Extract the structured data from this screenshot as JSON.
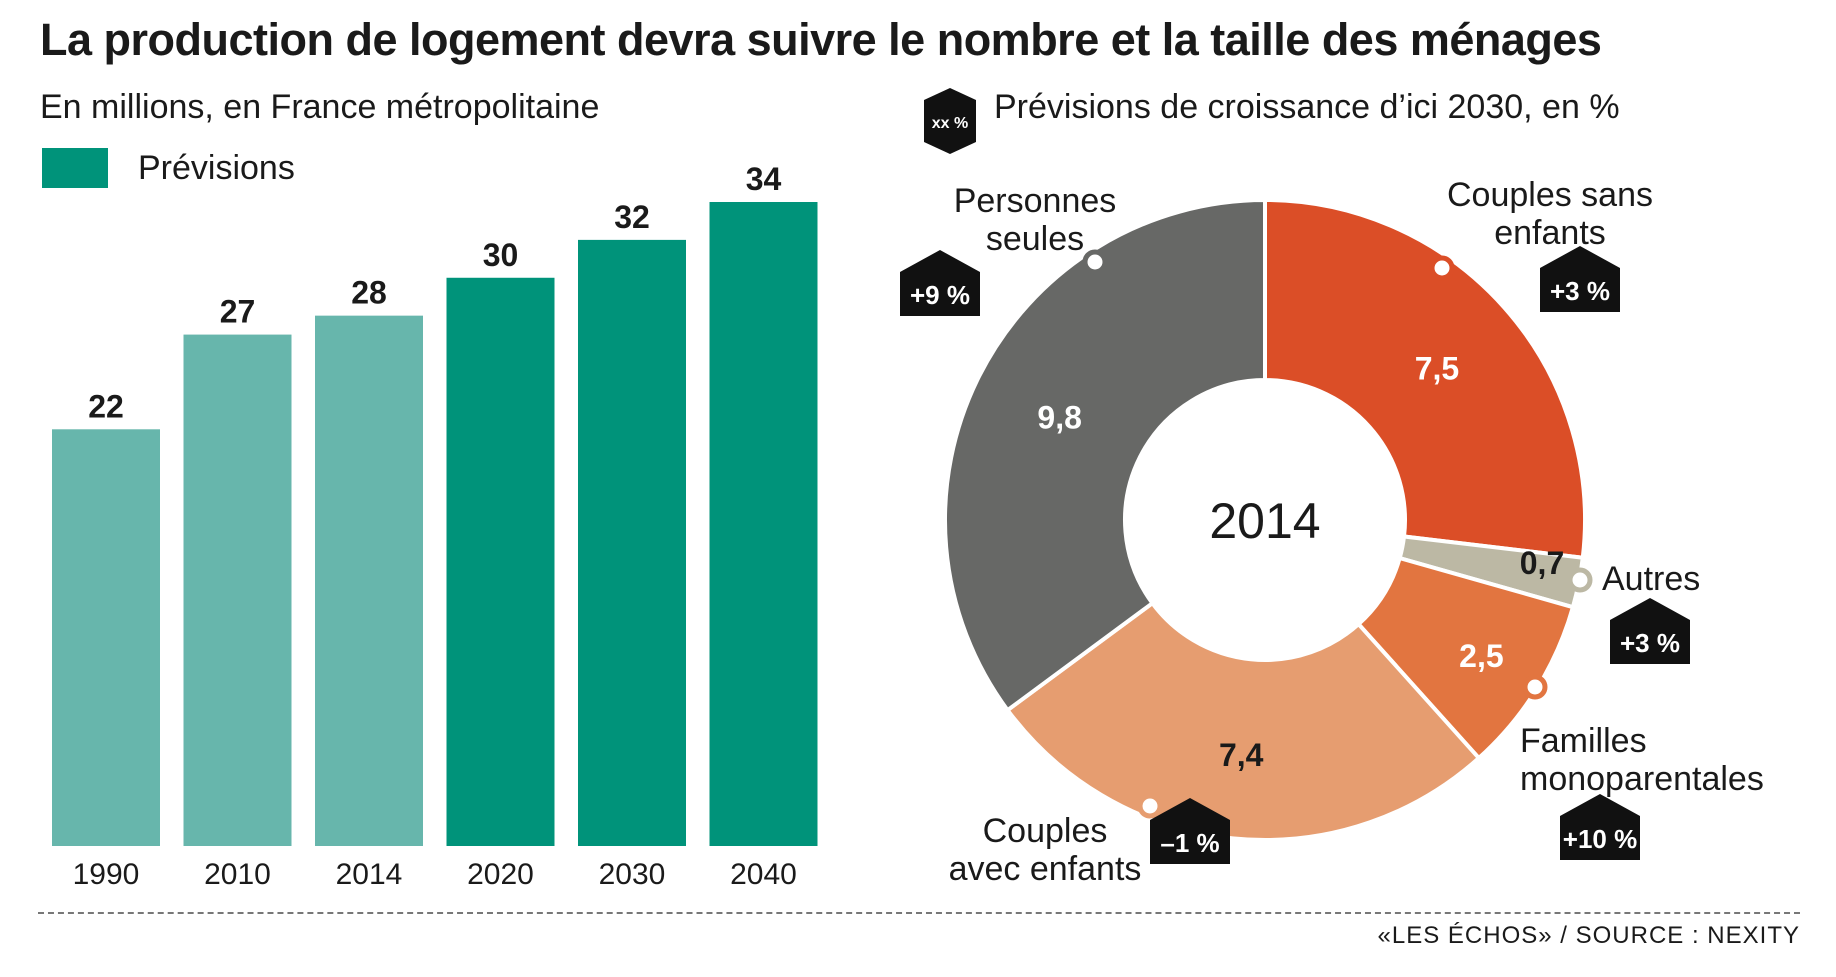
{
  "title": "La production de logement devra suivre le nombre et la taille des ménages",
  "source": "«LES ÉCHOS» / SOURCE : NEXITY",
  "chart_data": [
    {
      "type": "bar",
      "subtitle": "En millions, en France métropolitaine",
      "legend": {
        "label": "Prévisions",
        "color": "#00937a"
      },
      "categories": [
        "1990",
        "2010",
        "2014",
        "2020",
        "2030",
        "2040"
      ],
      "values": [
        22,
        27,
        28,
        30,
        32,
        34
      ],
      "forecast": [
        false,
        false,
        false,
        true,
        true,
        true
      ],
      "colors": {
        "actual": "#67b6ac",
        "forecast": "#00937a"
      },
      "ylim": [
        0,
        34
      ]
    },
    {
      "type": "pie",
      "center_label": "2014",
      "growth_legend": {
        "badge": "xx %",
        "label": "Prévisions de croissance d’ici 2030, en %"
      },
      "slices": [
        {
          "label": "Couples sans enfants",
          "value": 7.5,
          "value_label": "7,5",
          "growth": "+3 %",
          "color": "#db4e27"
        },
        {
          "label": "Autres",
          "value": 0.7,
          "value_label": "0,7",
          "growth": "+3 %",
          "color": "#bcb8a4"
        },
        {
          "label": "Familles monoparentales",
          "value": 2.5,
          "value_label": "2,5",
          "growth": "+10 %",
          "color": "#e27540"
        },
        {
          "label": "Couples avec enfants",
          "value": 7.4,
          "value_label": "7,4",
          "growth": "–1 %",
          "color": "#e69d70"
        },
        {
          "label": "Personnes seules",
          "value": 9.8,
          "value_label": "9,8",
          "growth": "+9 %",
          "color": "#676866"
        }
      ]
    }
  ]
}
